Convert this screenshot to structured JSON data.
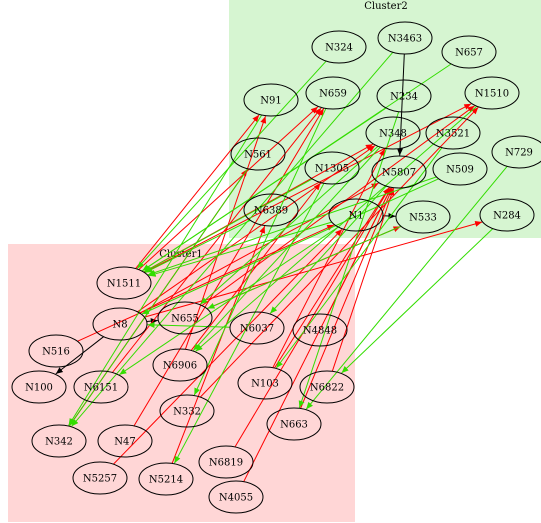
{
  "clusters": [
    {
      "id": "cluster1",
      "label": "Cluster1",
      "fill": "#ffd6d6"
    },
    {
      "id": "cluster2",
      "label": "Cluster2",
      "fill": "#d6f5d1"
    }
  ],
  "nodes": [
    {
      "id": "N324",
      "label": "N324"
    },
    {
      "id": "N3463",
      "label": "N3463"
    },
    {
      "id": "N657",
      "label": "N657"
    },
    {
      "id": "N91",
      "label": "N91"
    },
    {
      "id": "N659",
      "label": "N659"
    },
    {
      "id": "N234",
      "label": "N234"
    },
    {
      "id": "N1510",
      "label": "N1510"
    },
    {
      "id": "N348",
      "label": "N348"
    },
    {
      "id": "N3521",
      "label": "N3521"
    },
    {
      "id": "N561",
      "label": "N561"
    },
    {
      "id": "N1305",
      "label": "N1305"
    },
    {
      "id": "N5807",
      "label": "N5807"
    },
    {
      "id": "N509",
      "label": "N509"
    },
    {
      "id": "N729",
      "label": "N729"
    },
    {
      "id": "N6389",
      "label": "N6389"
    },
    {
      "id": "N1",
      "label": "N1"
    },
    {
      "id": "N533",
      "label": "N533"
    },
    {
      "id": "N284",
      "label": "N284"
    },
    {
      "id": "N1511",
      "label": "N1511"
    },
    {
      "id": "N8",
      "label": "N8"
    },
    {
      "id": "N655",
      "label": "N655"
    },
    {
      "id": "N6037",
      "label": "N6037"
    },
    {
      "id": "N4848",
      "label": "N4848"
    },
    {
      "id": "N516",
      "label": "N516"
    },
    {
      "id": "N6906",
      "label": "N6906"
    },
    {
      "id": "N100",
      "label": "N100"
    },
    {
      "id": "N6151",
      "label": "N6151"
    },
    {
      "id": "N103",
      "label": "N103"
    },
    {
      "id": "N6822",
      "label": "N6822"
    },
    {
      "id": "N332",
      "label": "N332"
    },
    {
      "id": "N342",
      "label": "N342"
    },
    {
      "id": "N47",
      "label": "N47"
    },
    {
      "id": "N663",
      "label": "N663"
    },
    {
      "id": "N6819",
      "label": "N6819"
    },
    {
      "id": "N5257",
      "label": "N5257"
    },
    {
      "id": "N5214",
      "label": "N5214"
    },
    {
      "id": "N4055",
      "label": "N4055"
    }
  ],
  "edges": [
    {
      "from": "N3463",
      "to": "N5807",
      "color": "#000000"
    },
    {
      "from": "N1",
      "to": "N533",
      "color": "#000000"
    },
    {
      "from": "N8",
      "to": "N655",
      "color": "#000000"
    },
    {
      "from": "N8",
      "to": "N100",
      "color": "#000000"
    },
    {
      "from": "N1511",
      "to": "N91",
      "color": "#ff0000"
    },
    {
      "from": "N1511",
      "to": "N659",
      "color": "#ff0000"
    },
    {
      "from": "N1511",
      "to": "N1510",
      "color": "#ff0000"
    },
    {
      "from": "N8",
      "to": "N348",
      "color": "#ff0000"
    },
    {
      "from": "N8",
      "to": "N5807",
      "color": "#ff0000"
    },
    {
      "from": "N8",
      "to": "N284",
      "color": "#ff0000"
    },
    {
      "from": "N655",
      "to": "N1510",
      "color": "#ff0000"
    },
    {
      "from": "N655",
      "to": "N533",
      "color": "#ff0000"
    },
    {
      "from": "N516",
      "to": "N1",
      "color": "#ff0000"
    },
    {
      "from": "N6151",
      "to": "N659",
      "color": "#ff0000"
    },
    {
      "from": "N6906",
      "to": "N91",
      "color": "#ff0000"
    },
    {
      "from": "N6906",
      "to": "N1305",
      "color": "#ff0000"
    },
    {
      "from": "N103",
      "to": "N348",
      "color": "#ff0000"
    },
    {
      "from": "N103",
      "to": "N5807",
      "color": "#ff0000"
    },
    {
      "from": "N332",
      "to": "N1510",
      "color": "#ff0000"
    },
    {
      "from": "N47",
      "to": "N659",
      "color": "#ff0000"
    },
    {
      "from": "N5257",
      "to": "N1",
      "color": "#ff0000"
    },
    {
      "from": "N5214",
      "to": "N6389",
      "color": "#ff0000"
    },
    {
      "from": "N663",
      "to": "N5807",
      "color": "#ff0000"
    },
    {
      "from": "N6819",
      "to": "N5807",
      "color": "#ff0000"
    },
    {
      "from": "N4055",
      "to": "N5807",
      "color": "#ff0000"
    },
    {
      "from": "N6822",
      "to": "N5807",
      "color": "#ff0000"
    },
    {
      "from": "N4848",
      "to": "N5807",
      "color": "#ff0000"
    },
    {
      "from": "N342",
      "to": "N561",
      "color": "#ff0000"
    },
    {
      "from": "N1511",
      "to": "N348",
      "color": "#ff0000"
    },
    {
      "from": "N324",
      "to": "N1511",
      "color": "#33dd00"
    },
    {
      "from": "N3463",
      "to": "N342",
      "color": "#33dd00"
    },
    {
      "from": "N657",
      "to": "N1511",
      "color": "#33dd00"
    },
    {
      "from": "N659",
      "to": "N332",
      "color": "#33dd00"
    },
    {
      "from": "N234",
      "to": "N1511",
      "color": "#33dd00"
    },
    {
      "from": "N234",
      "to": "N663",
      "color": "#33dd00"
    },
    {
      "from": "N348",
      "to": "N6906",
      "color": "#33dd00"
    },
    {
      "from": "N348",
      "to": "N655",
      "color": "#33dd00"
    },
    {
      "from": "N3521",
      "to": "N103",
      "color": "#33dd00"
    },
    {
      "from": "N561",
      "to": "N342",
      "color": "#33dd00"
    },
    {
      "from": "N1305",
      "to": "N5214",
      "color": "#33dd00"
    },
    {
      "from": "N1305",
      "to": "N1511",
      "color": "#33dd00"
    },
    {
      "from": "N509",
      "to": "N1511",
      "color": "#33dd00"
    },
    {
      "from": "N509",
      "to": "N8",
      "color": "#33dd00"
    },
    {
      "from": "N729",
      "to": "N663",
      "color": "#33dd00"
    },
    {
      "from": "N6389",
      "to": "N1511",
      "color": "#33dd00"
    },
    {
      "from": "N1",
      "to": "N6151",
      "color": "#33dd00"
    },
    {
      "from": "N1",
      "to": "N1511",
      "color": "#33dd00"
    },
    {
      "from": "N533",
      "to": "N655",
      "color": "#33dd00"
    },
    {
      "from": "N5807",
      "to": "N6037",
      "color": "#33dd00"
    },
    {
      "from": "N91",
      "to": "N342",
      "color": "#33dd00"
    },
    {
      "from": "N6037",
      "to": "N8",
      "color": "#33dd00"
    },
    {
      "from": "N284",
      "to": "N6822",
      "color": "#33dd00"
    },
    {
      "from": "N1510",
      "to": "N6906",
      "color": "#33dd00"
    }
  ]
}
